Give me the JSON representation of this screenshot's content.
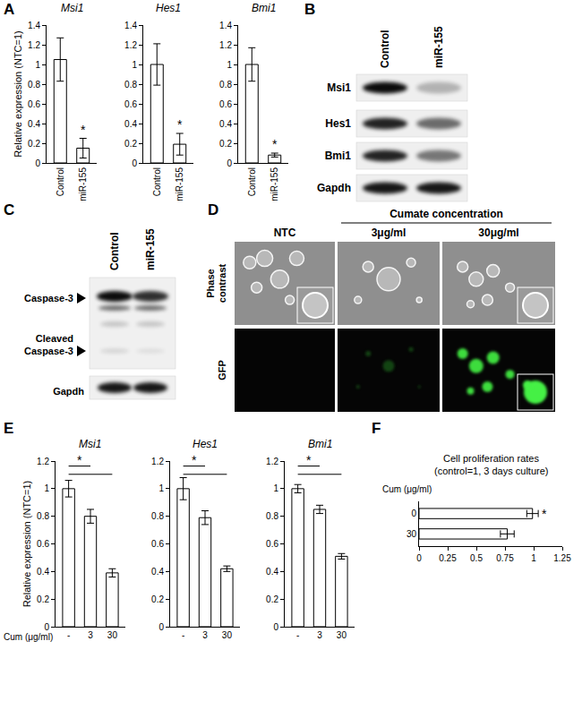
{
  "panels": [
    "A",
    "B",
    "C",
    "D",
    "E",
    "F"
  ],
  "chart_data": [
    {
      "type": "bar",
      "title": "Msi1",
      "ylabel": "Relative expression (NTC=1)",
      "categories": [
        "Control",
        "miR-155"
      ],
      "values": [
        1.05,
        0.15
      ],
      "errors": [
        0.22,
        0.1
      ],
      "color": "#ffffff",
      "ylim": [
        0,
        1.4
      ],
      "yticks": [
        0,
        0.2,
        0.4,
        0.6,
        0.8,
        1,
        1.2,
        1.4
      ],
      "annotations": [
        {
          "category": "miR-155",
          "text": "*"
        }
      ]
    },
    {
      "type": "bar",
      "title": "Hes1",
      "categories": [
        "Control",
        "miR-155"
      ],
      "values": [
        1.0,
        0.19
      ],
      "errors": [
        0.21,
        0.11
      ],
      "color": "#ffffff",
      "ylim": [
        0,
        1.4
      ],
      "yticks": [
        0,
        0.2,
        0.4,
        0.6,
        0.8,
        1,
        1.2,
        1.4
      ],
      "annotations": [
        {
          "category": "miR-155",
          "text": "*"
        }
      ]
    },
    {
      "type": "bar",
      "title": "Bmi1",
      "categories": [
        "Control",
        "miR-155"
      ],
      "values": [
        1.0,
        0.08
      ],
      "errors": [
        0.17,
        0.02
      ],
      "color": "#ffffff",
      "ylim": [
        0,
        1.4
      ],
      "yticks": [
        0,
        0.2,
        0.4,
        0.6,
        0.8,
        1,
        1.2,
        1.4
      ],
      "annotations": [
        {
          "category": "miR-155",
          "text": "*"
        }
      ]
    },
    {
      "type": "bar",
      "title": "Msi1",
      "ylabel": "Relative expression (NTC=1)",
      "xlabel": "Cum (μg/ml)",
      "categories": [
        "-",
        "3",
        "30"
      ],
      "values": [
        1.0,
        0.8,
        0.39
      ],
      "errors": [
        0.06,
        0.05,
        0.03
      ],
      "color": "#ffffff",
      "ylim": [
        0,
        1.2
      ],
      "yticks": [
        0,
        0.2,
        0.4,
        0.6,
        0.8,
        1,
        1.2
      ],
      "annotations": [
        {
          "text": "*",
          "between": [
            [
              "-",
              "3"
            ],
            [
              "-",
              "30"
            ]
          ]
        }
      ]
    },
    {
      "type": "bar",
      "title": "Hes1",
      "categories": [
        "-",
        "3",
        "30"
      ],
      "values": [
        1.0,
        0.79,
        0.42
      ],
      "errors": [
        0.08,
        0.05,
        0.02
      ],
      "color": "#ffffff",
      "ylim": [
        0,
        1.2
      ],
      "yticks": [
        0,
        0.2,
        0.4,
        0.6,
        0.8,
        1,
        1.2
      ],
      "annotations": [
        {
          "text": "*",
          "between": [
            [
              "-",
              "3"
            ],
            [
              "-",
              "30"
            ]
          ]
        }
      ]
    },
    {
      "type": "bar",
      "title": "Bmi1",
      "categories": [
        "-",
        "3",
        "30"
      ],
      "values": [
        1.0,
        0.85,
        0.51
      ],
      "errors": [
        0.03,
        0.03,
        0.02
      ],
      "color": "#ffffff",
      "ylim": [
        0,
        1.2
      ],
      "yticks": [
        0,
        0.2,
        0.4,
        0.6,
        0.8,
        1,
        1.2
      ],
      "annotations": [
        {
          "text": "*",
          "between": [
            [
              "-",
              "3"
            ],
            [
              "-",
              "30"
            ]
          ]
        }
      ]
    },
    {
      "type": "bar",
      "orientation": "horizontal",
      "title": "Cell proliferation rates",
      "subtitle": "(control=1, 3 days culture)",
      "ylabel": "Cum (μg/ml)",
      "categories": [
        "0",
        "30"
      ],
      "values": [
        0.99,
        0.77
      ],
      "errors": [
        0.05,
        0.06
      ],
      "color": "#ffffff",
      "xlim": [
        0,
        1.25
      ],
      "xticks": [
        0,
        0.25,
        0.5,
        0.75,
        1,
        1.25
      ],
      "annotations": [
        {
          "category": "0",
          "text": "*"
        }
      ]
    }
  ],
  "blots": [
    {
      "lanes": [
        "Control",
        "miR-155"
      ],
      "rows": [
        "Msi1",
        "Hes1",
        "Bmi1",
        "Gapdh"
      ]
    },
    {
      "lanes": [
        "Control",
        "miR-155"
      ],
      "rows": [
        "Caspase-3",
        "Cleaved Caspase-3",
        "Gapdh"
      ]
    }
  ],
  "images": {
    "header": "Cumate concentration",
    "columns": [
      "NTC",
      "3μg/ml",
      "30μg/ml"
    ],
    "rows": [
      "Phase contrast",
      "GFP"
    ]
  }
}
